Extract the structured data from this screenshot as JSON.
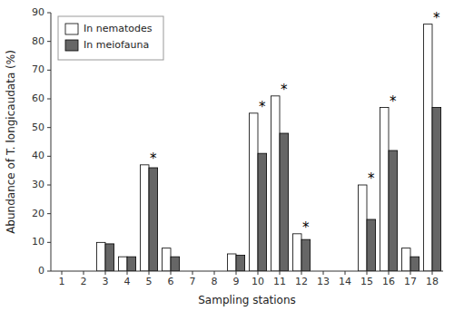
{
  "chart_data": {
    "type": "bar",
    "x_label": "Sampling stations",
    "y_label": "Abundance of T. longicaudata (%)",
    "categories": [
      "1",
      "2",
      "3",
      "4",
      "5",
      "6",
      "7",
      "8",
      "9",
      "10",
      "11",
      "12",
      "13",
      "14",
      "15",
      "16",
      "17",
      "18"
    ],
    "series": [
      {
        "name": "In nematodes",
        "color": "#ffffff",
        "values": [
          0,
          0,
          10,
          5,
          37,
          8,
          0,
          0,
          6,
          55,
          61,
          13,
          0,
          0,
          30,
          57,
          8,
          86
        ]
      },
      {
        "name": "In meiofauna",
        "color": "#666666",
        "values": [
          0,
          0,
          9.5,
          5,
          36,
          5,
          0,
          0,
          5.5,
          41,
          48,
          11,
          0,
          0,
          18,
          42,
          5,
          57
        ]
      }
    ],
    "annotations": [
      {
        "text": "*",
        "x": "5"
      },
      {
        "text": "*",
        "x": "10"
      },
      {
        "text": "*",
        "x": "11"
      },
      {
        "text": "*",
        "x": "12"
      },
      {
        "text": "*",
        "x": "15"
      },
      {
        "text": "*",
        "x": "16"
      },
      {
        "text": "*",
        "x": "18"
      }
    ],
    "ylim": [
      0,
      90
    ],
    "yticks": [
      0,
      10,
      20,
      30,
      40,
      50,
      60,
      70,
      80,
      90
    ],
    "grid": false,
    "legend": "upper left"
  }
}
